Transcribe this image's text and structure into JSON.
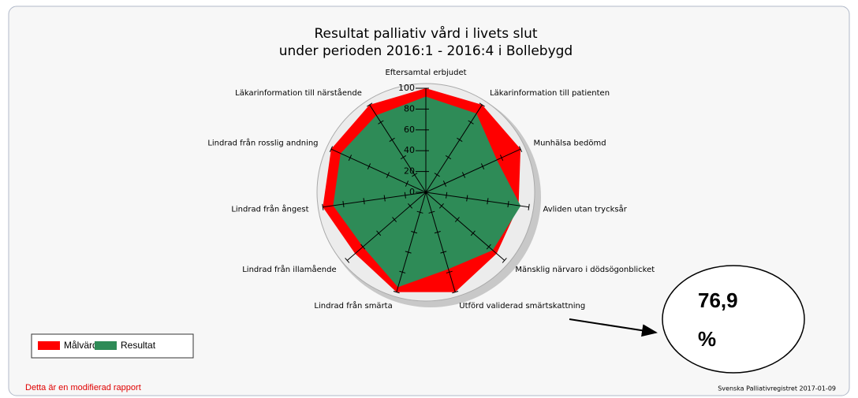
{
  "chart_data": {
    "type": "radar",
    "title": "Resultat palliativ vård i livets slut",
    "subtitle": "under perioden 2016:1 - 2016:4 i Bollebygd",
    "categories": [
      "Eftersamtal erbjudet",
      "Läkarinformation till patienten",
      "Munhälsa bedömd",
      "Avliden utan trycksår",
      "Mänsklig närvaro i dödsögonblicket",
      "Utförd validerad smärtskattning",
      "Lindrad från smärta",
      "Lindrad från illamående",
      "Lindrad från ångest",
      "Lindrad från rosslig andning",
      "Läkarinformation till närstående"
    ],
    "series": [
      {
        "name": "Målvärde",
        "color": "#ff0000",
        "values": [
          100,
          100,
          100,
          90,
          90,
          100,
          100,
          90,
          100,
          100,
          100
        ]
      },
      {
        "name": "Resultat",
        "color": "#2e8b57",
        "values": [
          92,
          90,
          75,
          92,
          85,
          76.9,
          95,
          80,
          90,
          90,
          88
        ]
      }
    ],
    "rlim": [
      0,
      100
    ],
    "rticks": [
      0,
      20,
      40,
      60,
      80,
      100
    ],
    "annotation": {
      "value": "76,9",
      "unit": "%"
    },
    "footer_left": "Detta är en modifierad rapport",
    "footer_right": "Svenska Palliativregistret 2017-01-09"
  }
}
